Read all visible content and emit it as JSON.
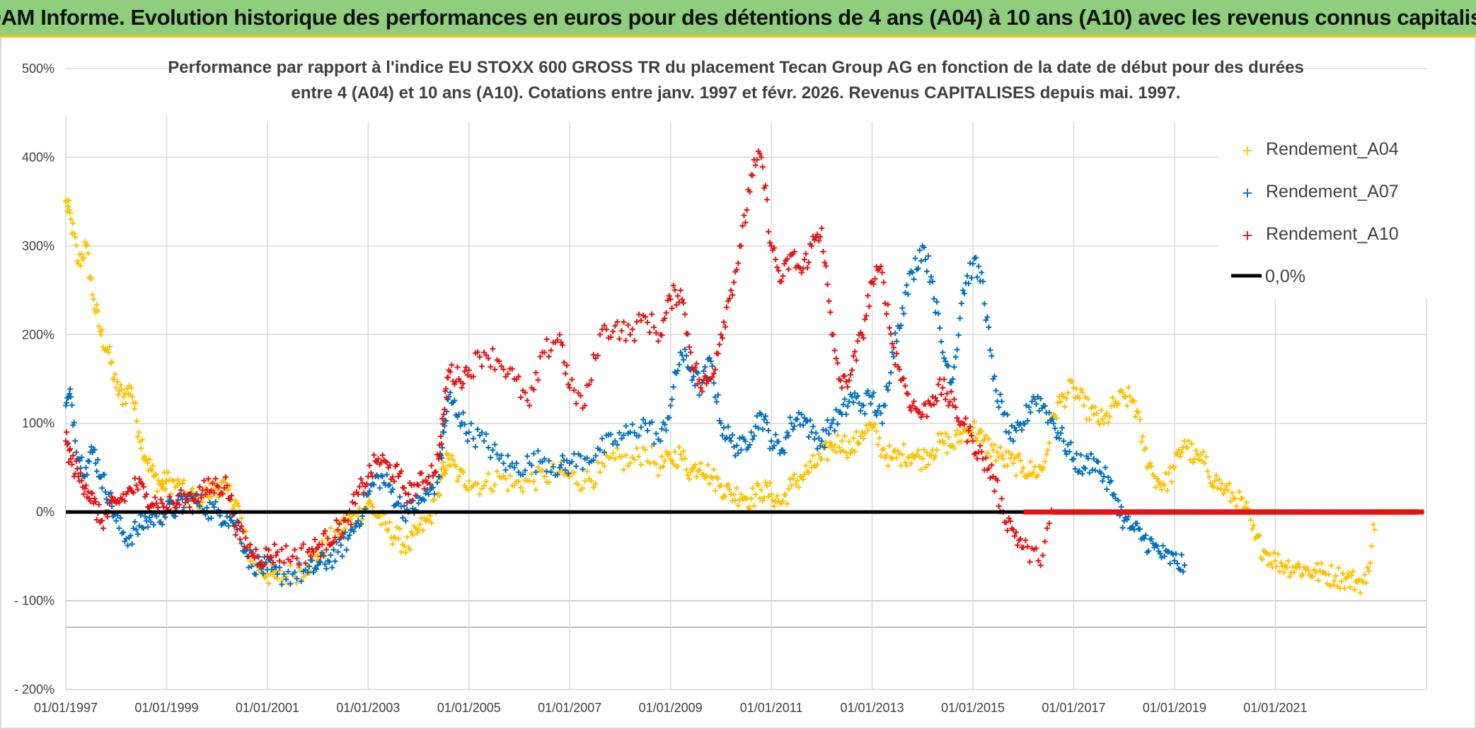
{
  "banner": {
    "title": "ADAM Informe. Evolution historique des performances en euros pour des détentions de 4 ans (A04) à 10 ans (A10) avec les revenus connus capitalisés"
  },
  "chart_data": {
    "type": "scatter",
    "title_line1": "Performance par rapport à l'indice EU STOXX 600 GROSS TR  du placement Tecan Group AG en fonction de la date de début pour des durées",
    "title_line2": "entre 4 (A04) et 10 ans (A10). Cotations entre janv. 1997 et févr. 2026. Revenus CAPITALISES depuis mai. 1997.",
    "ylim": [
      -200,
      500
    ],
    "y_ticks": [
      500,
      400,
      300,
      200,
      100,
      0,
      -100,
      -200
    ],
    "y_tick_labels": [
      "500%",
      "400%",
      "300%",
      "200%",
      "100%",
      "0%",
      "- 100%",
      "- 200%"
    ],
    "xlim": [
      1997.0,
      2024.0
    ],
    "x_ticks": [
      1997,
      1999,
      2001,
      2003,
      2005,
      2007,
      2009,
      2011,
      2013,
      2015,
      2017,
      2019,
      2021
    ],
    "x_tick_labels": [
      "01/01/1997",
      "01/01/1999",
      "01/01/2001",
      "01/01/2003",
      "01/01/2005",
      "01/01/2007",
      "01/01/2009",
      "01/01/2011",
      "01/01/2013",
      "01/01/2015",
      "01/01/2017",
      "01/01/2019",
      "01/01/2021"
    ],
    "legend": [
      "Rendement_A04",
      "Rendement_A07",
      "Rendement_A10",
      "0,0%"
    ],
    "series": [
      {
        "name": "Rendement_A04",
        "color": "#ffc000",
        "x": [
          1997.0,
          1997.1,
          1997.25,
          1997.4,
          1997.55,
          1997.7,
          1997.85,
          1998.0,
          1998.15,
          1998.3,
          1998.45,
          1998.6,
          1998.75,
          1998.9,
          1999.0,
          1999.2,
          1999.4,
          1999.6,
          1999.8,
          2000.0,
          2000.2,
          2000.4,
          2000.6,
          2000.8,
          2001.0,
          2001.2,
          2001.5,
          2001.8,
          2002.0,
          2002.2,
          2002.4,
          2002.6,
          2002.8,
          2003.0,
          2003.2,
          2003.4,
          2003.6,
          2003.8,
          2004.0,
          2004.2,
          2004.4,
          2004.5,
          2004.6,
          2004.8,
          2005.0,
          2005.3,
          2005.6,
          2005.9,
          2006.2,
          2006.5,
          2006.8,
          2007.0,
          2007.3,
          2007.6,
          2007.9,
          2008.2,
          2008.5,
          2008.8,
          2009.0,
          2009.2,
          2009.4,
          2009.6,
          2009.8,
          2010.0,
          2010.2,
          2010.4,
          2010.6,
          2010.8,
          2011.0,
          2011.2,
          2011.4,
          2011.6,
          2011.8,
          2012.0,
          2012.2,
          2012.4,
          2012.6,
          2012.8,
          2013.0,
          2013.2,
          2013.4,
          2013.6,
          2013.8,
          2014.0,
          2014.2,
          2014.4,
          2014.6,
          2014.8,
          2015.0,
          2015.2,
          2015.4,
          2015.6,
          2015.8,
          2016.0,
          2016.2,
          2016.4,
          2016.6,
          2016.8,
          2017.0,
          2017.2,
          2017.4,
          2017.6,
          2017.8,
          2018.0,
          2018.2,
          2018.4,
          2018.6,
          2018.8,
          2019.0,
          2019.2,
          2019.4,
          2019.6,
          2019.8,
          2020.0,
          2020.2,
          2020.4,
          2020.6,
          2020.8,
          2021.0,
          2021.2,
          2021.4,
          2021.6,
          2021.8,
          2022.0,
          2022.2,
          2022.4,
          2022.6,
          2022.8,
          2023.0,
          2023.3,
          2023.6,
          2023.9
        ],
        "y": [
          350,
          330,
          280,
          300,
          240,
          200,
          180,
          140,
          130,
          140,
          90,
          60,
          40,
          30,
          35,
          30,
          20,
          15,
          20,
          30,
          25,
          10,
          -40,
          -60,
          -70,
          -75,
          -70,
          -60,
          -50,
          -35,
          -20,
          -10,
          -5,
          10,
          -5,
          -20,
          -30,
          -40,
          -20,
          -10,
          20,
          50,
          60,
          40,
          35,
          30,
          40,
          30,
          35,
          40,
          45,
          40,
          35,
          45,
          60,
          55,
          70,
          50,
          60,
          65,
          45,
          55,
          40,
          30,
          20,
          20,
          15,
          25,
          20,
          10,
          30,
          40,
          50,
          60,
          75,
          80,
          70,
          90,
          95,
          70,
          60,
          65,
          65,
          60,
          70,
          80,
          75,
          90,
          95,
          80,
          70,
          60,
          55,
          50,
          45,
          50,
          110,
          130,
          140,
          120,
          110,
          100,
          120,
          130,
          125,
          70,
          40,
          30,
          50,
          80,
          60,
          55,
          35,
          25,
          15,
          5,
          -30,
          -45,
          -55,
          -60,
          -62,
          -65,
          -68,
          -70,
          -72,
          -75,
          -78,
          -80,
          0,
          0,
          0,
          0
        ]
      },
      {
        "name": "Rendement_A07",
        "color": "#0070c0",
        "x": [
          1997.0,
          1997.1,
          1997.25,
          1997.4,
          1997.55,
          1997.7,
          1997.85,
          1998.0,
          1998.2,
          1998.4,
          1998.6,
          1998.8,
          1999.0,
          1999.2,
          1999.4,
          1999.6,
          1999.8,
          2000.0,
          2000.2,
          2000.4,
          2000.6,
          2000.8,
          2001.0,
          2001.2,
          2001.5,
          2001.8,
          2002.0,
          2002.2,
          2002.4,
          2002.6,
          2002.8,
          2003.0,
          2003.2,
          2003.4,
          2003.6,
          2003.8,
          2004.0,
          2004.2,
          2004.4,
          2004.5,
          2004.6,
          2004.8,
          2005.0,
          2005.3,
          2005.6,
          2005.9,
          2006.2,
          2006.5,
          2006.8,
          2007.0,
          2007.3,
          2007.6,
          2007.9,
          2008.2,
          2008.5,
          2008.8,
          2009.0,
          2009.2,
          2009.4,
          2009.6,
          2009.8,
          2010.0,
          2010.2,
          2010.4,
          2010.6,
          2010.8,
          2011.0,
          2011.2,
          2011.4,
          2011.6,
          2011.8,
          2012.0,
          2012.2,
          2012.4,
          2012.6,
          2012.8,
          2013.0,
          2013.2,
          2013.4,
          2013.6,
          2013.8,
          2014.0,
          2014.2,
          2014.4,
          2014.6,
          2014.8,
          2015.0,
          2015.2,
          2015.4,
          2015.6,
          2015.8,
          2016.0,
          2016.2,
          2016.4,
          2016.6,
          2016.8,
          2017.0,
          2017.2,
          2017.4,
          2017.6,
          2017.8,
          2018.0,
          2018.2,
          2018.4,
          2018.6,
          2018.8,
          2019.0,
          2019.2
        ],
        "y": [
          120,
          130,
          60,
          50,
          70,
          40,
          20,
          -10,
          -30,
          -20,
          -10,
          -5,
          0,
          5,
          15,
          10,
          5,
          0,
          -5,
          -10,
          -50,
          -60,
          -65,
          -70,
          -70,
          -68,
          -60,
          -55,
          -45,
          -30,
          -10,
          20,
          40,
          30,
          10,
          0,
          10,
          20,
          40,
          90,
          130,
          110,
          90,
          80,
          60,
          50,
          55,
          60,
          50,
          55,
          60,
          70,
          80,
          90,
          100,
          80,
          120,
          180,
          160,
          140,
          170,
          100,
          80,
          70,
          90,
          110,
          80,
          70,
          100,
          110,
          90,
          80,
          100,
          110,
          130,
          120,
          130,
          100,
          180,
          230,
          270,
          300,
          260,
          180,
          150,
          250,
          280,
          260,
          150,
          110,
          80,
          100,
          130,
          120,
          100,
          80,
          60,
          50,
          60,
          40,
          20,
          -10,
          -20,
          -30,
          -40,
          -50,
          -55,
          -60
        ]
      },
      {
        "name": "Rendement_A10",
        "color": "#e81010",
        "x": [
          1997.0,
          1997.1,
          1997.25,
          1997.4,
          1997.55,
          1997.7,
          1997.85,
          1998.0,
          1998.2,
          1998.4,
          1998.6,
          1998.8,
          1999.0,
          1999.2,
          1999.4,
          1999.6,
          1999.8,
          2000.0,
          2000.2,
          2000.4,
          2000.6,
          2000.8,
          2001.0,
          2001.2,
          2001.5,
          2001.8,
          2002.0,
          2002.2,
          2002.4,
          2002.6,
          2002.8,
          2003.0,
          2003.2,
          2003.4,
          2003.6,
          2003.8,
          2004.0,
          2004.2,
          2004.4,
          2004.5,
          2004.6,
          2004.8,
          2005.0,
          2005.3,
          2005.6,
          2005.9,
          2006.2,
          2006.5,
          2006.8,
          2007.0,
          2007.3,
          2007.6,
          2007.9,
          2008.2,
          2008.5,
          2008.8,
          2009.0,
          2009.2,
          2009.4,
          2009.6,
          2009.8,
          2010.0,
          2010.2,
          2010.4,
          2010.6,
          2010.8,
          2011.0,
          2011.2,
          2011.4,
          2011.6,
          2011.8,
          2012.0,
          2012.2,
          2012.4,
          2012.6,
          2012.8,
          2013.0,
          2013.2,
          2013.4,
          2013.6,
          2013.8,
          2014.0,
          2014.2,
          2014.4,
          2014.6,
          2014.8,
          2015.0,
          2015.2,
          2015.4,
          2015.6,
          2015.8,
          2016.0,
          2016.3,
          2016.6,
          2016.9,
          2017.2,
          2017.5,
          2017.8,
          2018.1,
          2018.4,
          2018.7,
          2019.0,
          2019.3,
          2019.6,
          2019.9,
          2020.2,
          2020.5,
          2020.8,
          2021.1,
          2021.4,
          2021.7,
          2022.0,
          2022.3,
          2022.6,
          2022.9,
          2023.2,
          2023.5,
          2023.8
        ],
        "y": [
          80,
          60,
          40,
          30,
          10,
          -10,
          0,
          10,
          20,
          30,
          20,
          10,
          5,
          10,
          15,
          20,
          25,
          30,
          30,
          -20,
          -40,
          -50,
          -50,
          -45,
          -50,
          -45,
          -40,
          -30,
          -20,
          -10,
          20,
          40,
          60,
          50,
          40,
          20,
          30,
          40,
          60,
          110,
          160,
          150,
          160,
          180,
          170,
          150,
          120,
          180,
          200,
          140,
          120,
          200,
          210,
          200,
          220,
          200,
          240,
          250,
          180,
          140,
          150,
          200,
          250,
          300,
          380,
          400,
          300,
          260,
          290,
          270,
          300,
          320,
          200,
          140,
          160,
          200,
          260,
          270,
          190,
          150,
          120,
          110,
          130,
          140,
          120,
          100,
          80,
          60,
          40,
          0,
          -20,
          -40,
          -55,
          0,
          0,
          0,
          0,
          0,
          0,
          0,
          0,
          0,
          0,
          0,
          0,
          0,
          0,
          0,
          0,
          0,
          0,
          0,
          0,
          0,
          0,
          0,
          0,
          0
        ]
      }
    ],
    "reference_line": {
      "name": "0,0%",
      "y": 0,
      "color": "#000000"
    }
  }
}
